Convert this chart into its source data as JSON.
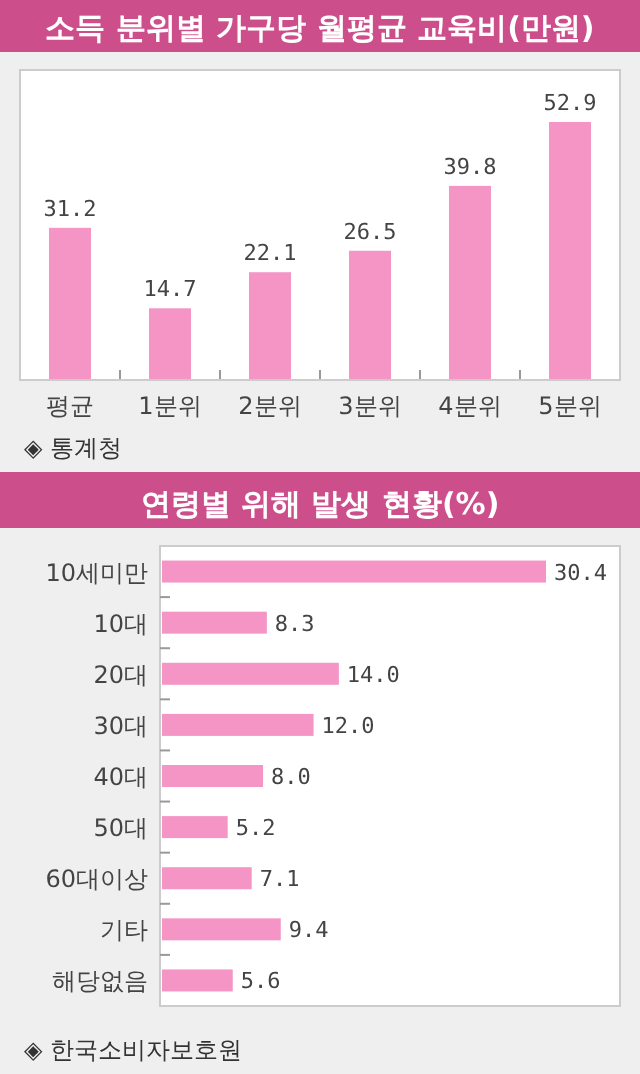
{
  "chart_data": [
    {
      "type": "bar",
      "title": "소득 분위별 가구당 월평균 교육비(만원)",
      "categories": [
        "평균",
        "1분위",
        "2분위",
        "3분위",
        "4분위",
        "5분위"
      ],
      "values": [
        31.2,
        14.7,
        22.1,
        26.5,
        39.8,
        52.9
      ],
      "color": "#f495c5",
      "data_labels": true,
      "annotations": [
        "◈ 통계청"
      ]
    },
    {
      "type": "bar",
      "orientation": "horizontal",
      "title": "연령별 위해 발생 현황(%)",
      "categories": [
        "10세미만",
        "10대",
        "20대",
        "30대",
        "40대",
        "50대",
        "60대이상",
        "기타",
        "해당없음"
      ],
      "values": [
        30.4,
        8.3,
        14.0,
        12.0,
        8.0,
        5.2,
        7.1,
        9.4,
        5.6
      ],
      "value_labels": [
        "30.4",
        "8.3",
        "14.0",
        "12.0",
        "8.0",
        "5.2",
        "7.1",
        "9.4",
        "5.6"
      ],
      "color": "#f495c5",
      "annotations": [
        "◈ 한국소비자보호원"
      ]
    }
  ]
}
